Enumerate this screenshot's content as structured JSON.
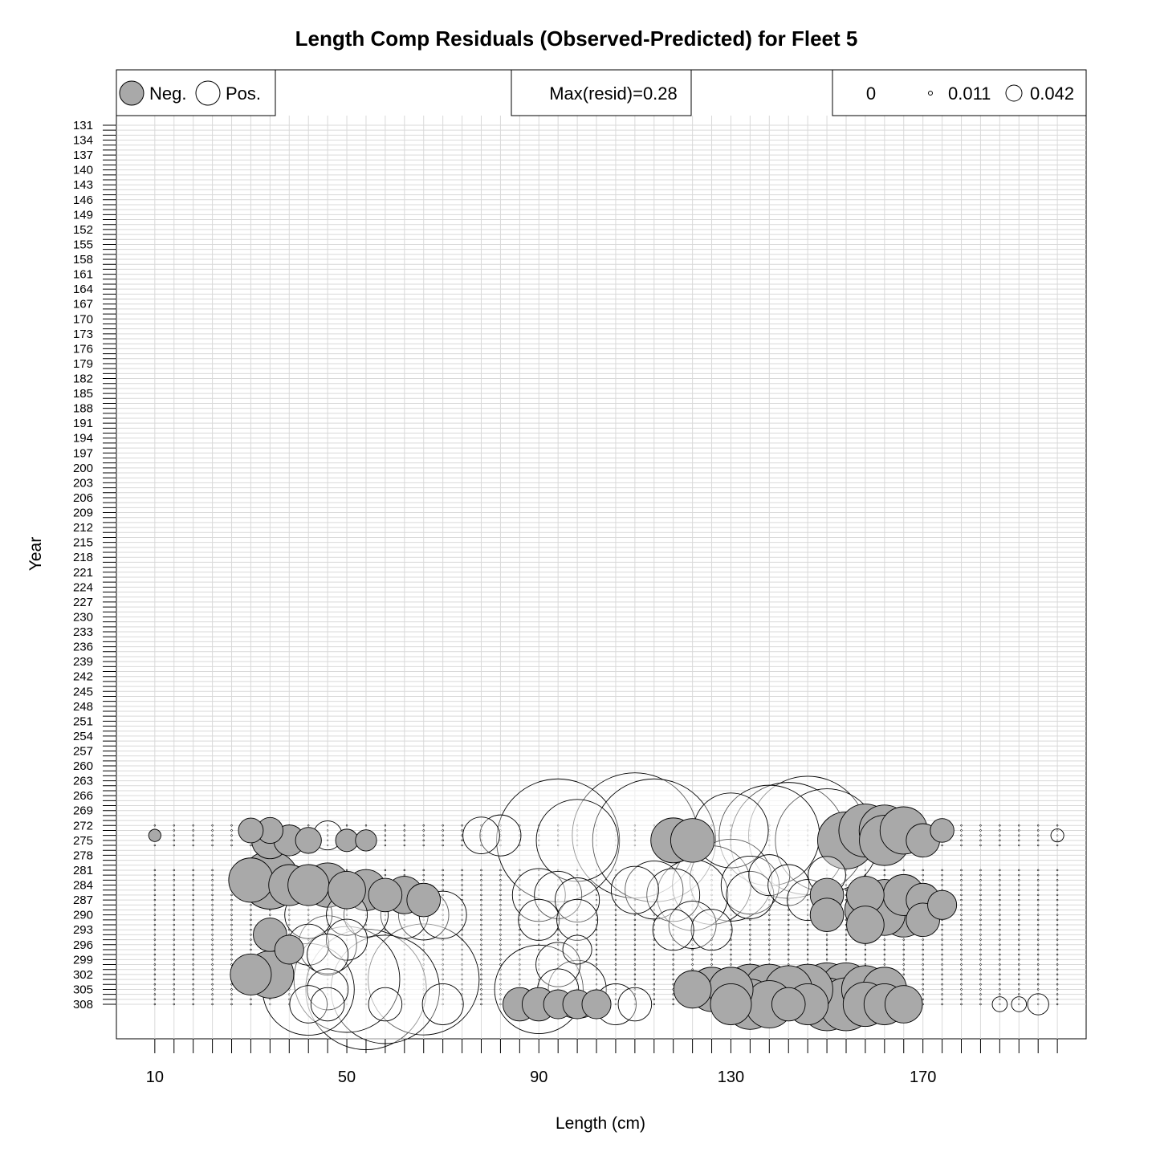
{
  "chart_data": {
    "type": "bubble",
    "title": "Length Comp Residuals (Observed-Predicted) for Fleet 5",
    "xlabel": "Length (cm)",
    "ylabel": "Year",
    "x_ticks": [
      10,
      50,
      90,
      130,
      170
    ],
    "x_range": [
      2,
      204
    ],
    "y_range": [
      129,
      315
    ],
    "year_labels": [
      131,
      134,
      137,
      140,
      143,
      146,
      149,
      152,
      155,
      158,
      161,
      164,
      167,
      170,
      173,
      176,
      179,
      182,
      185,
      188,
      191,
      194,
      197,
      200,
      203,
      206,
      209,
      212,
      215,
      218,
      221,
      224,
      227,
      230,
      233,
      236,
      239,
      242,
      245,
      248,
      251,
      254,
      257,
      260,
      263,
      266,
      269,
      272,
      275,
      278,
      281,
      284,
      287,
      290,
      293,
      296,
      299,
      302,
      305,
      308
    ],
    "length_bins": [
      10,
      14,
      18,
      22,
      26,
      30,
      34,
      38,
      42,
      46,
      50,
      54,
      58,
      62,
      66,
      70,
      74,
      78,
      82,
      86,
      90,
      94,
      98,
      102,
      106,
      110,
      114,
      118,
      122,
      126,
      130,
      134,
      138,
      142,
      146,
      150,
      154,
      158,
      162,
      166,
      170,
      174,
      178,
      182,
      186,
      190,
      194,
      198
    ],
    "legend": {
      "neg_label": "Neg.",
      "pos_label": "Pos.",
      "max_text": "Max(resid)=0.28",
      "scale_values": [
        "0",
        "0.011",
        "0.042"
      ]
    },
    "colors": {
      "negative": "#a9a9a9",
      "positive": "#ffffff",
      "grid": "#d9d9d9"
    },
    "max_resid": 0.28,
    "bubbles": [
      {
        "x": 10,
        "y": 274,
        "r": -0.0027
      },
      {
        "x": 30,
        "y": 273,
        "r": -0.011
      },
      {
        "x": 34,
        "y": 273,
        "r": -0.012
      },
      {
        "x": 34,
        "y": 275,
        "r": -0.024
      },
      {
        "x": 38,
        "y": 275,
        "r": -0.017
      },
      {
        "x": 42,
        "y": 275,
        "r": -0.012
      },
      {
        "x": 46,
        "y": 274,
        "r": 0.015
      },
      {
        "x": 50,
        "y": 275,
        "r": -0.009
      },
      {
        "x": 54,
        "y": 275,
        "r": -0.008
      },
      {
        "x": 78,
        "y": 274,
        "r": 0.024
      },
      {
        "x": 82,
        "y": 274,
        "r": 0.03
      },
      {
        "x": 94,
        "y": 275,
        "r": 0.27
      },
      {
        "x": 98,
        "y": 275,
        "r": 0.12
      },
      {
        "x": 110,
        "y": 274,
        "r": 0.28
      },
      {
        "x": 114,
        "y": 275,
        "r": 0.27
      },
      {
        "x": 118,
        "y": 275,
        "r": -0.036
      },
      {
        "x": 122,
        "y": 275,
        "r": -0.034
      },
      {
        "x": 130,
        "y": 273,
        "r": 0.1
      },
      {
        "x": 138,
        "y": 274,
        "r": 0.18
      },
      {
        "x": 142,
        "y": 275,
        "r": 0.24
      },
      {
        "x": 146,
        "y": 274,
        "r": 0.25
      },
      {
        "x": 150,
        "y": 275,
        "r": 0.19
      },
      {
        "x": 154,
        "y": 275,
        "r": -0.058
      },
      {
        "x": 158,
        "y": 273,
        "r": -0.05
      },
      {
        "x": 162,
        "y": 273,
        "r": -0.046
      },
      {
        "x": 162,
        "y": 275,
        "r": -0.045
      },
      {
        "x": 166,
        "y": 273,
        "r": -0.04
      },
      {
        "x": 170,
        "y": 275,
        "r": -0.02
      },
      {
        "x": 174,
        "y": 273,
        "r": -0.01
      },
      {
        "x": 198,
        "y": 274,
        "r": 0.003
      },
      {
        "x": 30,
        "y": 283,
        "r": -0.035
      },
      {
        "x": 34,
        "y": 283,
        "r": -0.06
      },
      {
        "x": 38,
        "y": 284,
        "r": -0.03
      },
      {
        "x": 42,
        "y": 284,
        "r": -0.03
      },
      {
        "x": 46,
        "y": 284,
        "r": -0.035
      },
      {
        "x": 50,
        "y": 285,
        "r": -0.025
      },
      {
        "x": 54,
        "y": 285,
        "r": -0.03
      },
      {
        "x": 58,
        "y": 286,
        "r": -0.02
      },
      {
        "x": 62,
        "y": 286,
        "r": -0.025
      },
      {
        "x": 66,
        "y": 287,
        "r": -0.02
      },
      {
        "x": 42,
        "y": 290,
        "r": 0.04
      },
      {
        "x": 50,
        "y": 290,
        "r": 0.03
      },
      {
        "x": 54,
        "y": 290,
        "r": 0.035
      },
      {
        "x": 62,
        "y": 290,
        "r": 0.04
      },
      {
        "x": 66,
        "y": 290,
        "r": 0.045
      },
      {
        "x": 70,
        "y": 290,
        "r": 0.04
      },
      {
        "x": 90,
        "y": 286,
        "r": 0.05
      },
      {
        "x": 94,
        "y": 286,
        "r": 0.04
      },
      {
        "x": 98,
        "y": 287,
        "r": 0.035
      },
      {
        "x": 90,
        "y": 291,
        "r": 0.03
      },
      {
        "x": 98,
        "y": 291,
        "r": 0.03
      },
      {
        "x": 110,
        "y": 285,
        "r": 0.04
      },
      {
        "x": 114,
        "y": 285,
        "r": 0.06
      },
      {
        "x": 118,
        "y": 286,
        "r": 0.05
      },
      {
        "x": 122,
        "y": 286,
        "r": 0.09
      },
      {
        "x": 126,
        "y": 284,
        "r": 0.11
      },
      {
        "x": 130,
        "y": 283,
        "r": 0.12
      },
      {
        "x": 134,
        "y": 284,
        "r": 0.06
      },
      {
        "x": 134,
        "y": 286,
        "r": 0.04
      },
      {
        "x": 138,
        "y": 282,
        "r": 0.03
      },
      {
        "x": 142,
        "y": 284,
        "r": 0.03
      },
      {
        "x": 146,
        "y": 287,
        "r": 0.03
      },
      {
        "x": 150,
        "y": 282,
        "r": 0.025
      },
      {
        "x": 150,
        "y": 286,
        "r": -0.02
      },
      {
        "x": 150,
        "y": 290,
        "r": -0.02
      },
      {
        "x": 158,
        "y": 286,
        "r": -0.025
      },
      {
        "x": 158,
        "y": 289,
        "r": -0.03
      },
      {
        "x": 158,
        "y": 292,
        "r": -0.025
      },
      {
        "x": 162,
        "y": 287,
        "r": -0.03
      },
      {
        "x": 162,
        "y": 290,
        "r": -0.03
      },
      {
        "x": 166,
        "y": 286,
        "r": -0.03
      },
      {
        "x": 166,
        "y": 290,
        "r": -0.035
      },
      {
        "x": 170,
        "y": 287,
        "r": -0.02
      },
      {
        "x": 170,
        "y": 291,
        "r": -0.02
      },
      {
        "x": 174,
        "y": 288,
        "r": -0.015
      },
      {
        "x": 122,
        "y": 292,
        "r": 0.04
      },
      {
        "x": 126,
        "y": 293,
        "r": 0.03
      },
      {
        "x": 118,
        "y": 293,
        "r": 0.03
      },
      {
        "x": 42,
        "y": 296,
        "r": 0.03
      },
      {
        "x": 46,
        "y": 296,
        "r": 0.06
      },
      {
        "x": 50,
        "y": 295,
        "r": 0.03
      },
      {
        "x": 46,
        "y": 298,
        "r": 0.03
      },
      {
        "x": 34,
        "y": 294,
        "r": -0.02
      },
      {
        "x": 38,
        "y": 297,
        "r": -0.015
      },
      {
        "x": 94,
        "y": 300,
        "r": 0.035
      },
      {
        "x": 98,
        "y": 297,
        "r": 0.015
      },
      {
        "x": 30,
        "y": 302,
        "r": -0.03
      },
      {
        "x": 34,
        "y": 302,
        "r": -0.04
      },
      {
        "x": 42,
        "y": 305,
        "r": 0.15
      },
      {
        "x": 50,
        "y": 303,
        "r": 0.2
      },
      {
        "x": 54,
        "y": 305,
        "r": 0.26
      },
      {
        "x": 58,
        "y": 305,
        "r": 0.21
      },
      {
        "x": 66,
        "y": 303,
        "r": 0.22
      },
      {
        "x": 46,
        "y": 305,
        "r": 0.03
      },
      {
        "x": 58,
        "y": 308,
        "r": 0.02
      },
      {
        "x": 70,
        "y": 308,
        "r": 0.03
      },
      {
        "x": 42,
        "y": 308,
        "r": 0.025
      },
      {
        "x": 46,
        "y": 308,
        "r": 0.02
      },
      {
        "x": 90,
        "y": 305,
        "r": 0.14
      },
      {
        "x": 94,
        "y": 305,
        "r": 0.03
      },
      {
        "x": 98,
        "y": 305,
        "r": 0.06
      },
      {
        "x": 86,
        "y": 308,
        "r": -0.02
      },
      {
        "x": 90,
        "y": 308,
        "r": -0.02
      },
      {
        "x": 94,
        "y": 308,
        "r": -0.015
      },
      {
        "x": 98,
        "y": 308,
        "r": -0.015
      },
      {
        "x": 102,
        "y": 308,
        "r": -0.015
      },
      {
        "x": 106,
        "y": 308,
        "r": 0.03
      },
      {
        "x": 110,
        "y": 308,
        "r": 0.02
      },
      {
        "x": 122,
        "y": 305,
        "r": -0.025
      },
      {
        "x": 126,
        "y": 305,
        "r": -0.035
      },
      {
        "x": 130,
        "y": 305,
        "r": -0.035
      },
      {
        "x": 134,
        "y": 305,
        "r": -0.045
      },
      {
        "x": 138,
        "y": 305,
        "r": -0.045
      },
      {
        "x": 142,
        "y": 305,
        "r": -0.04
      },
      {
        "x": 146,
        "y": 305,
        "r": -0.045
      },
      {
        "x": 150,
        "y": 305,
        "r": -0.05
      },
      {
        "x": 154,
        "y": 305,
        "r": -0.05
      },
      {
        "x": 158,
        "y": 305,
        "r": -0.04
      },
      {
        "x": 162,
        "y": 305,
        "r": -0.035
      },
      {
        "x": 130,
        "y": 308,
        "r": -0.03
      },
      {
        "x": 134,
        "y": 308,
        "r": -0.045
      },
      {
        "x": 138,
        "y": 308,
        "r": -0.04
      },
      {
        "x": 142,
        "y": 308,
        "r": -0.02
      },
      {
        "x": 146,
        "y": 308,
        "r": -0.03
      },
      {
        "x": 150,
        "y": 308,
        "r": -0.05
      },
      {
        "x": 154,
        "y": 308,
        "r": -0.05
      },
      {
        "x": 158,
        "y": 308,
        "r": -0.035
      },
      {
        "x": 162,
        "y": 308,
        "r": -0.03
      },
      {
        "x": 166,
        "y": 308,
        "r": -0.025
      },
      {
        "x": 194,
        "y": 308,
        "r": 0.008
      },
      {
        "x": 190,
        "y": 308,
        "r": 0.004
      },
      {
        "x": 186,
        "y": 308,
        "r": 0.004
      }
    ]
  }
}
